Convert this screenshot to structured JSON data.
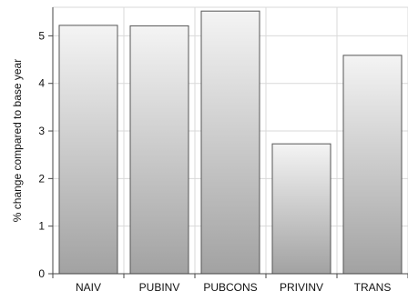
{
  "chart_data": {
    "type": "bar",
    "categories": [
      "NAIV",
      "PUBINV",
      "PUBCONS",
      "PRIVINV",
      "TRANS"
    ],
    "values": [
      5.22,
      5.21,
      5.52,
      2.73,
      4.59
    ],
    "title": "",
    "xlabel": "",
    "ylabel": "% change compared to  base year",
    "ylim": [
      0,
      5.6
    ],
    "yticks": [
      0,
      1,
      2,
      3,
      4,
      5
    ],
    "grid": true,
    "legend": "none",
    "colors": {
      "bar_top": "#f4f4f4",
      "bar_bottom": "#a2a2a2",
      "bar_edge": "#555555",
      "grid": "#d9d9d9",
      "axis": "#444444"
    }
  }
}
